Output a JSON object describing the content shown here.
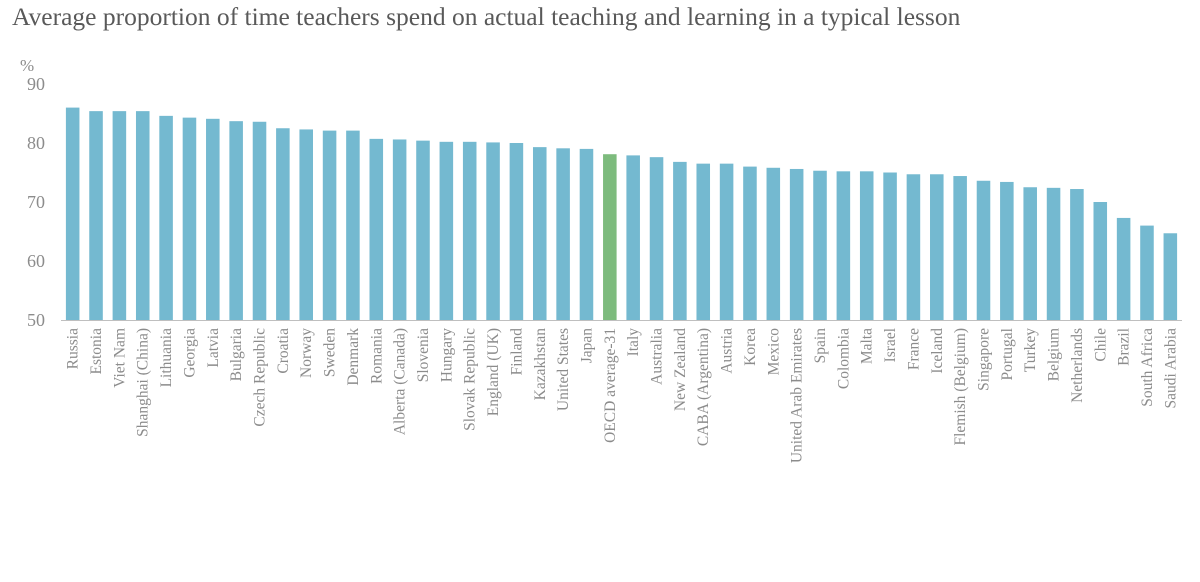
{
  "page": {
    "title": "Average proportion of time teachers spend on actual teaching and learning in a typical lesson"
  },
  "chart_data": {
    "type": "bar",
    "title": "Average proportion of time teachers spend on actual teaching and learning in a typical lesson",
    "ylabel": "%",
    "xlabel": "",
    "ylim": [
      50,
      90
    ],
    "yticks": [
      50,
      60,
      70,
      80,
      90
    ],
    "grid": false,
    "legend": "none",
    "colors": {
      "bar": "#74b9d0",
      "highlight": "#7dbb7d",
      "axis": "#bfbfbf"
    },
    "highlight_category": "OECD average-31",
    "categories": [
      "Russia",
      "Estonia",
      "Viet Nam",
      "Shanghai (China)",
      "Lithuania",
      "Georgia",
      "Latvia",
      "Bulgaria",
      "Czech Republic",
      "Croatia",
      "Norway",
      "Sweden",
      "Denmark",
      "Romania",
      "Alberta (Canada)",
      "Slovenia",
      "Hungary",
      "Slovak Republic",
      "England (UK)",
      "Finland",
      "Kazakhstan",
      "United States",
      "Japan",
      "OECD average-31",
      "Italy",
      "Australia",
      "New Zealand",
      "CABA (Argentina)",
      "Austria",
      "Korea",
      "Mexico",
      "United Arab Emirates",
      "Spain",
      "Colombia",
      "Malta",
      "Israel",
      "France",
      "Iceland",
      "Flemish (Belgium)",
      "Singapore",
      "Portugal",
      "Turkey",
      "Belgium",
      "Netherlands",
      "Chile",
      "Brazil",
      "South Africa",
      "Saudi Arabia"
    ],
    "values": [
      86.0,
      85.4,
      85.4,
      85.4,
      84.6,
      84.3,
      84.1,
      83.7,
      83.6,
      82.5,
      82.3,
      82.1,
      82.1,
      80.7,
      80.6,
      80.4,
      80.2,
      80.2,
      80.1,
      80.0,
      79.3,
      79.1,
      79.0,
      78.1,
      77.9,
      77.6,
      76.8,
      76.5,
      76.5,
      76.0,
      75.8,
      75.6,
      75.3,
      75.2,
      75.2,
      75.0,
      74.7,
      74.7,
      74.4,
      73.6,
      73.4,
      72.5,
      72.4,
      72.2,
      70.0,
      67.3,
      66.0,
      64.7
    ]
  }
}
